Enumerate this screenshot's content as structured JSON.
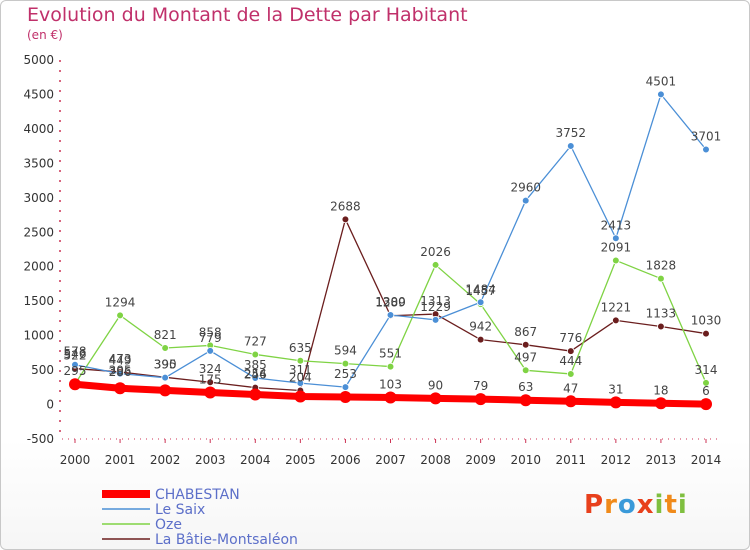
{
  "chart_data": {
    "type": "line",
    "title": "Evolution du Montant de la Dette par Habitant",
    "unit_label": "(en €)",
    "x": [
      2000,
      2001,
      2002,
      2003,
      2004,
      2005,
      2006,
      2007,
      2008,
      2009,
      2010,
      2011,
      2012,
      2013,
      2014
    ],
    "ylim": [
      -500,
      5000
    ],
    "yticks": [
      -500,
      0,
      500,
      1000,
      1500,
      2000,
      2500,
      3000,
      3500,
      4000,
      4500,
      5000
    ],
    "grid": false,
    "legend_position": "bottom-left",
    "series": [
      {
        "name": "CHABESTAN",
        "color": "#ff0000",
        "values": [
          295,
          236,
          205,
          175,
          146,
          116,
          110,
          103,
          90,
          79,
          63,
          47,
          31,
          18,
          6
        ],
        "labels": [
          "295",
          "",
          "",
          "175",
          "",
          "",
          "",
          "103",
          "90",
          "79",
          "63",
          "47",
          "31",
          "18",
          "6"
        ]
      },
      {
        "name": "Le Saix",
        "color": "#4b8fd6",
        "values": [
          578,
          449,
          390,
          779,
          385,
          311,
          253,
          1300,
          1229,
          1484,
          2960,
          3752,
          2413,
          4501,
          3701
        ],
        "labels": [
          "578",
          "449",
          "390",
          "779",
          "385",
          "311",
          "253",
          "1300",
          "1229",
          "1484",
          "2960",
          "3752",
          "2413",
          "4501",
          "3701"
        ]
      },
      {
        "name": "Oze",
        "color": "#7fd344",
        "values": [
          300,
          1294,
          821,
          858,
          727,
          635,
          594,
          551,
          2026,
          1457,
          497,
          444,
          2091,
          1828,
          314
        ],
        "labels": [
          "",
          "1294",
          "821",
          "858",
          "727",
          "635",
          "594",
          "551",
          "2026",
          "1457",
          "497",
          "444",
          "2091",
          "1828",
          "314"
        ]
      },
      {
        "name": "La Bâtie-Montsaléon",
        "color": "#6b1e1e",
        "values": [
          522,
          473,
          395,
          324,
          246,
          204,
          2688,
          1289,
          1313,
          942,
          867,
          776,
          1221,
          1133,
          1030
        ],
        "labels": [
          "522",
          "473",
          "395",
          "324",
          "246",
          "204",
          "2688",
          "1289",
          "1313",
          "942",
          "867",
          "776",
          "1221",
          "1133",
          "1030"
        ]
      }
    ]
  },
  "extra_labels": [
    "546",
    "286",
    "305",
    "254"
  ],
  "logo": {
    "text": "Proxiti",
    "letters": [
      "P",
      "r",
      "o",
      "x",
      "i",
      "t",
      "i"
    ],
    "colors": [
      "#e8401c",
      "#f08a1a",
      "#3a9ad9",
      "#e8401c",
      "#7fbf3f",
      "#f08a1a",
      "#7fbf3f"
    ]
  }
}
